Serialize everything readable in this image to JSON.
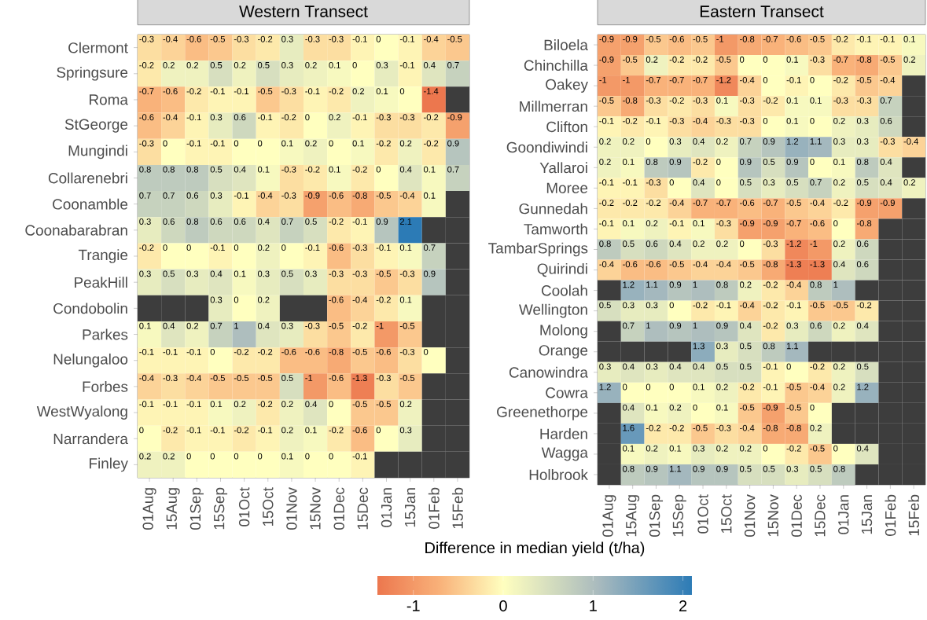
{
  "chart_data": [
    {
      "type": "heatmap",
      "title": "Western Transect",
      "categories": [
        "01Aug",
        "15Aug",
        "01Sep",
        "15Sep",
        "01Oct",
        "15Oct",
        "01Nov",
        "15Nov",
        "01Dec",
        "15Dec",
        "01Jan",
        "15Jan",
        "01Feb",
        "15Feb"
      ],
      "y_categories": [
        "Clermont",
        "Springsure",
        "Roma",
        "StGeorge",
        "Mungindi",
        "Collarenebri",
        "Coonamble",
        "Coonabarabran",
        "Trangie",
        "PeakHill",
        "Condobolin",
        "Parkes",
        "Nelungaloo",
        "Forbes",
        "WestWyalong",
        "Narrandera",
        "Finley"
      ],
      "cells": [
        [
          -0.3,
          -0.4,
          -0.6,
          -0.5,
          -0.3,
          -0.2,
          0.3,
          -0.3,
          -0.3,
          -0.1,
          0,
          -0.1,
          -0.4,
          -0.5
        ],
        [
          -0.2,
          0.2,
          0.2,
          0.5,
          0.2,
          0.5,
          0.3,
          0.2,
          0.1,
          0,
          0.3,
          -0.1,
          0.4,
          0.7
        ],
        [
          -0.7,
          -0.6,
          -0.2,
          -0.1,
          -0.1,
          -0.5,
          -0.3,
          -0.1,
          -0.2,
          0.2,
          0.1,
          0,
          -1.4,
          null
        ],
        [
          -0.6,
          -0.4,
          -0.1,
          0.3,
          0.6,
          -0.1,
          -0.2,
          0,
          0.2,
          -0.1,
          -0.3,
          -0.3,
          -0.2,
          -0.9
        ],
        [
          -0.3,
          0,
          -0.1,
          -0.1,
          0,
          0,
          0.1,
          0.2,
          0,
          0.1,
          -0.2,
          0.2,
          -0.2,
          0.9
        ],
        [
          0.8,
          0.8,
          0.8,
          0.5,
          0.4,
          0.1,
          -0.3,
          -0.2,
          0.1,
          -0.2,
          0,
          0.4,
          0.1,
          0.7
        ],
        [
          0.7,
          0.7,
          0.6,
          0.3,
          -0.1,
          -0.4,
          -0.3,
          -0.9,
          -0.6,
          -0.8,
          -0.5,
          -0.4,
          0.1,
          null
        ],
        [
          0.3,
          0.6,
          0.8,
          0.6,
          0.6,
          0.4,
          0.7,
          0.5,
          -0.2,
          -0.1,
          0.9,
          2.1,
          null,
          null
        ],
        [
          -0.2,
          0,
          0,
          -0.1,
          0,
          0.2,
          0,
          -0.1,
          -0.6,
          -0.3,
          -0.1,
          0.1,
          0.7,
          null
        ],
        [
          0.3,
          0.5,
          0.3,
          0.4,
          0.1,
          0.3,
          0.5,
          0.3,
          -0.3,
          -0.3,
          -0.5,
          -0.3,
          0.9,
          null
        ],
        [
          null,
          null,
          null,
          0.3,
          0,
          0.2,
          null,
          null,
          -0.6,
          -0.4,
          -0.2,
          0.1,
          null,
          null
        ],
        [
          0.1,
          0.4,
          0.2,
          0.7,
          1,
          0.4,
          0.3,
          -0.3,
          -0.5,
          -0.2,
          -1,
          -0.5,
          null,
          null
        ],
        [
          -0.1,
          -0.1,
          -0.1,
          0,
          -0.2,
          -0.2,
          -0.6,
          -0.6,
          -0.8,
          -0.5,
          -0.6,
          -0.3,
          0,
          null
        ],
        [
          -0.4,
          -0.3,
          -0.4,
          -0.5,
          -0.5,
          -0.5,
          0.5,
          -1,
          -0.6,
          -1.3,
          -0.3,
          -0.5,
          null,
          null
        ],
        [
          -0.1,
          -0.1,
          -0.1,
          0.1,
          0.2,
          -0.2,
          0.2,
          0.4,
          0,
          -0.5,
          -0.5,
          0.2,
          null,
          null
        ],
        [
          0,
          -0.2,
          -0.1,
          -0.1,
          -0.2,
          -0.1,
          0.2,
          0.1,
          -0.2,
          -0.6,
          0,
          0.3,
          null,
          null
        ],
        [
          0.2,
          0.2,
          0,
          0,
          0,
          0,
          0.1,
          0,
          0,
          -0.1,
          null,
          null,
          null,
          null
        ]
      ],
      "data_labels": true,
      "clabel": "Difference in median yield (t/ha)",
      "clim": [
        -1.4,
        2.1
      ],
      "cticks": [
        -1,
        0,
        1,
        2
      ]
    },
    {
      "type": "heatmap",
      "title": "Eastern Transect",
      "categories": [
        "01Aug",
        "15Aug",
        "01Sep",
        "15Sep",
        "01Oct",
        "15Oct",
        "01Nov",
        "15Nov",
        "01Dec",
        "15Dec",
        "01Jan",
        "15Jan",
        "01Feb",
        "15Feb"
      ],
      "y_categories": [
        "Biloela",
        "Chinchilla",
        "Oakey",
        "Millmerran",
        "Clifton",
        "Goondiwindi",
        "Yallaroi",
        "Moree",
        "Gunnedah",
        "Tamworth",
        "TambarSprings",
        "Quirindi",
        "Coolah",
        "Wellington",
        "Molong",
        "Orange",
        "Canowindra",
        "Cowra",
        "Greenethorpe",
        "Harden",
        "Wagga",
        "Holbrook"
      ],
      "cells": [
        [
          -0.9,
          -0.9,
          -0.5,
          -0.6,
          -0.5,
          -1,
          -0.8,
          -0.7,
          -0.6,
          -0.5,
          -0.2,
          -0.1,
          -0.1,
          0.1
        ],
        [
          -0.9,
          -0.5,
          0.2,
          -0.2,
          -0.2,
          -0.5,
          0,
          0,
          0.1,
          -0.3,
          -0.7,
          -0.8,
          -0.5,
          0.2
        ],
        [
          -1,
          -1,
          -0.7,
          -0.7,
          -0.7,
          -1.2,
          -0.4,
          0,
          -0.1,
          0,
          -0.2,
          -0.5,
          -0.4,
          null
        ],
        [
          -0.5,
          -0.8,
          -0.3,
          -0.2,
          -0.3,
          0.1,
          -0.3,
          -0.2,
          0.1,
          0.1,
          -0.3,
          -0.3,
          0.7,
          null
        ],
        [
          -0.1,
          -0.2,
          -0.1,
          -0.3,
          -0.4,
          -0.3,
          -0.3,
          0,
          0.1,
          0,
          0.2,
          0.3,
          0.6,
          null
        ],
        [
          0.2,
          0.2,
          0,
          0.3,
          0.4,
          0.2,
          0.7,
          0.9,
          1.2,
          1.1,
          0.3,
          0.3,
          -0.3,
          -0.4
        ],
        [
          0.2,
          0.1,
          0.8,
          0.9,
          -0.2,
          0,
          0.9,
          0.5,
          0.9,
          0,
          0.1,
          0.8,
          0.4,
          null
        ],
        [
          -0.1,
          -0.1,
          -0.3,
          0,
          0.4,
          0,
          0.5,
          0.3,
          0.5,
          0.7,
          0.2,
          0.5,
          0.4,
          0.2
        ],
        [
          -0.2,
          -0.2,
          -0.2,
          -0.4,
          -0.7,
          -0.7,
          -0.6,
          -0.7,
          -0.5,
          -0.4,
          -0.2,
          -0.9,
          -0.9,
          null
        ],
        [
          -0.1,
          0.1,
          0.2,
          -0.1,
          0.1,
          -0.3,
          -0.9,
          -0.9,
          -0.7,
          -0.6,
          0,
          -0.8,
          null,
          null
        ],
        [
          0.8,
          0.5,
          0.6,
          0.4,
          0.2,
          0.2,
          0,
          -0.3,
          -1.2,
          -1,
          0.2,
          0.6,
          null,
          null
        ],
        [
          -0.4,
          -0.6,
          -0.6,
          -0.5,
          -0.4,
          -0.4,
          -0.5,
          -0.8,
          -1.3,
          -1.3,
          0.4,
          0.6,
          null,
          null
        ],
        [
          null,
          1.2,
          1.1,
          0.9,
          1,
          0.8,
          0.2,
          -0.2,
          -0.4,
          0.8,
          1,
          null,
          null,
          null
        ],
        [
          0.5,
          0.3,
          0.3,
          0,
          -0.2,
          -0.1,
          -0.4,
          -0.2,
          -0.1,
          -0.5,
          -0.5,
          -0.2,
          null,
          null
        ],
        [
          null,
          0.7,
          1,
          0.9,
          1,
          0.9,
          0.4,
          -0.2,
          0.3,
          0.6,
          0.2,
          0.4,
          null,
          null
        ],
        [
          null,
          null,
          null,
          null,
          1.3,
          0.3,
          0.5,
          0.8,
          1.1,
          null,
          null,
          null,
          null,
          null
        ],
        [
          0.3,
          0.4,
          0.3,
          0.4,
          0.4,
          0.5,
          0.5,
          -0.1,
          0,
          -0.2,
          0.2,
          0.5,
          null,
          null
        ],
        [
          1.2,
          0,
          0,
          0,
          0.1,
          0.2,
          -0.2,
          -0.1,
          -0.5,
          -0.4,
          0.2,
          1.2,
          null,
          null
        ],
        [
          null,
          0.4,
          0.1,
          0.2,
          0,
          0.1,
          -0.5,
          -0.9,
          -0.5,
          0,
          null,
          null,
          null,
          null
        ],
        [
          null,
          1.6,
          -0.2,
          -0.2,
          -0.5,
          -0.3,
          -0.4,
          -0.8,
          -0.8,
          0.2,
          null,
          null,
          null,
          null
        ],
        [
          null,
          0.1,
          0.2,
          0.1,
          0.3,
          0.2,
          0.2,
          0,
          -0.2,
          -0.5,
          0,
          0.4,
          null,
          null
        ],
        [
          null,
          0.8,
          0.9,
          1.1,
          0.9,
          0.9,
          0.5,
          0.5,
          0.3,
          0.5,
          0.8,
          null,
          null,
          null
        ]
      ],
      "data_labels": true
    }
  ]
}
